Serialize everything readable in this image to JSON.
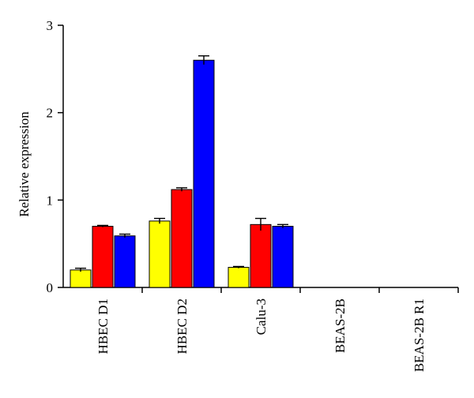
{
  "chart_data": {
    "type": "bar",
    "title": "",
    "xlabel": "",
    "ylabel": "Relative expression",
    "ylim": [
      0,
      3
    ],
    "yticks": [
      0,
      1,
      2,
      3
    ],
    "categories": [
      "HBEC D1",
      "HBEC D2",
      "Calu-3",
      "BEAS-2B",
      "BEAS-2B R1"
    ],
    "series": [
      {
        "color": "#ffff00",
        "values": [
          0.2,
          0.76,
          0.23,
          0,
          0
        ],
        "errors": [
          0.02,
          0.03,
          0.01,
          0,
          0
        ]
      },
      {
        "color": "#ff0000",
        "values": [
          0.7,
          1.12,
          0.72,
          0,
          0
        ],
        "errors": [
          0.01,
          0.02,
          0.07,
          0,
          0
        ]
      },
      {
        "color": "#0000ff",
        "values": [
          0.59,
          2.6,
          0.7,
          0,
          0
        ],
        "errors": [
          0.02,
          0.05,
          0.02,
          0,
          0
        ]
      }
    ],
    "grid": false,
    "legend": "none"
  }
}
